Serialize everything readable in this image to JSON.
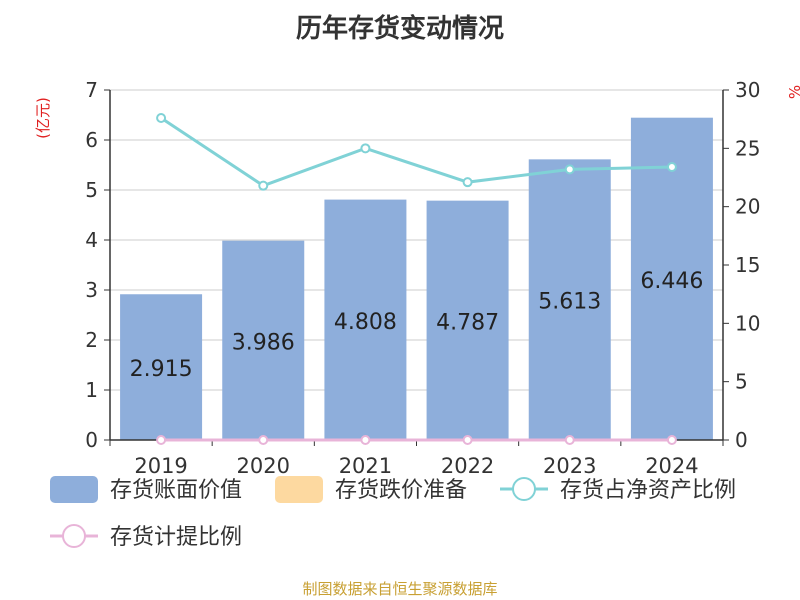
{
  "chart_data": {
    "type": "bar",
    "title": "历年存货变动情况",
    "categories": [
      "2019",
      "2020",
      "2021",
      "2022",
      "2023",
      "2024"
    ],
    "ylabel_left": "(亿元)",
    "ylabel_right": "%",
    "ylim_left": [
      0,
      7
    ],
    "ylim_right": [
      0,
      30
    ],
    "yticks_left": [
      0,
      1,
      2,
      3,
      4,
      5,
      6,
      7
    ],
    "yticks_right": [
      0,
      5,
      10,
      15,
      20,
      25,
      30
    ],
    "grid": true,
    "legend_position": "bottom",
    "series": [
      {
        "name": "存货账面价值",
        "type": "bar",
        "axis": "left",
        "color": "#8eaedb",
        "values": [
          2.915,
          3.986,
          4.808,
          4.787,
          5.613,
          6.446
        ],
        "labels": [
          "2.915",
          "3.986",
          "4.808",
          "4.787",
          "5.613",
          "6.446"
        ]
      },
      {
        "name": "存货跌价准备",
        "type": "bar",
        "axis": "left",
        "color": "#fdd9a0",
        "values": [
          0,
          0,
          0,
          0,
          0,
          0
        ]
      },
      {
        "name": "存货占净资产比例",
        "type": "line",
        "axis": "right",
        "color": "#80d2d6",
        "values": [
          27.6,
          21.8,
          25.0,
          22.1,
          23.2,
          23.4
        ]
      },
      {
        "name": "存货计提比例",
        "type": "line",
        "axis": "right",
        "color": "#e8b4d8",
        "values": [
          0,
          0,
          0,
          0,
          0,
          0
        ]
      }
    ]
  },
  "footer": {
    "source": "制图数据来自恒生聚源数据库"
  }
}
